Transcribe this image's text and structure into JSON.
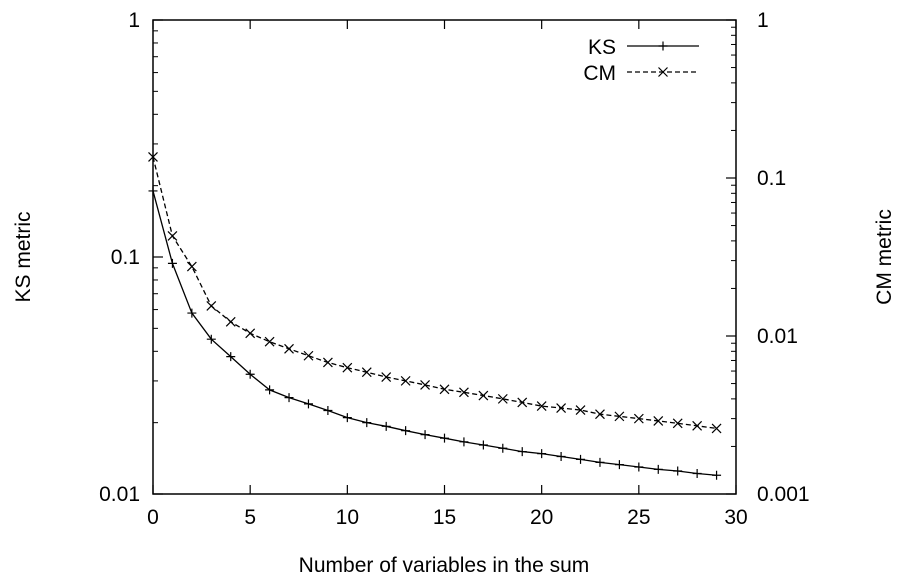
{
  "chart_data": {
    "type": "line",
    "title": "",
    "xlabel": "Number of variables in the sum",
    "ylabel": "KS metric",
    "y2label": "CM metric",
    "xlim": [
      0,
      30
    ],
    "ylim": [
      0.01,
      1
    ],
    "y2lim": [
      0.001,
      1
    ],
    "yscale": "log",
    "y2scale": "log",
    "grid": false,
    "legend_position": "top-right",
    "x_ticks": [
      "0",
      "5",
      "10",
      "15",
      "20",
      "25",
      "30"
    ],
    "y_ticks": [
      "0.01",
      "0.1",
      "1"
    ],
    "y2_ticks": [
      "0.001",
      "0.01",
      "0.1",
      "1"
    ],
    "x": [
      0,
      1,
      2,
      3,
      4,
      5,
      6,
      7,
      8,
      9,
      10,
      11,
      12,
      13,
      14,
      15,
      16,
      17,
      18,
      19,
      20,
      21,
      22,
      23,
      24,
      25,
      26,
      27,
      28,
      29
    ],
    "series": [
      {
        "name": "KS",
        "axis": "left",
        "line_style": "solid",
        "marker": "+",
        "color": "#000000",
        "values": [
          0.19,
          0.094,
          0.058,
          0.045,
          0.038,
          0.032,
          0.0275,
          0.0255,
          0.024,
          0.0225,
          0.021,
          0.02,
          0.0193,
          0.0185,
          0.0178,
          0.0172,
          0.0166,
          0.0161,
          0.0156,
          0.0151,
          0.0148,
          0.0144,
          0.014,
          0.0136,
          0.0133,
          0.013,
          0.0127,
          0.0125,
          0.0122,
          0.012
        ]
      },
      {
        "name": "CM",
        "axis": "right",
        "line_style": "dashed",
        "marker": "x",
        "color": "#000000",
        "values": [
          0.136,
          0.043,
          0.0275,
          0.0155,
          0.0123,
          0.0104,
          0.0092,
          0.0083,
          0.0075,
          0.0068,
          0.0063,
          0.0059,
          0.0055,
          0.0052,
          0.0049,
          0.0046,
          0.0044,
          0.0042,
          0.004,
          0.0038,
          0.0036,
          0.0035,
          0.0034,
          0.0032,
          0.0031,
          0.003,
          0.0029,
          0.0028,
          0.0027,
          0.0026
        ]
      }
    ]
  }
}
